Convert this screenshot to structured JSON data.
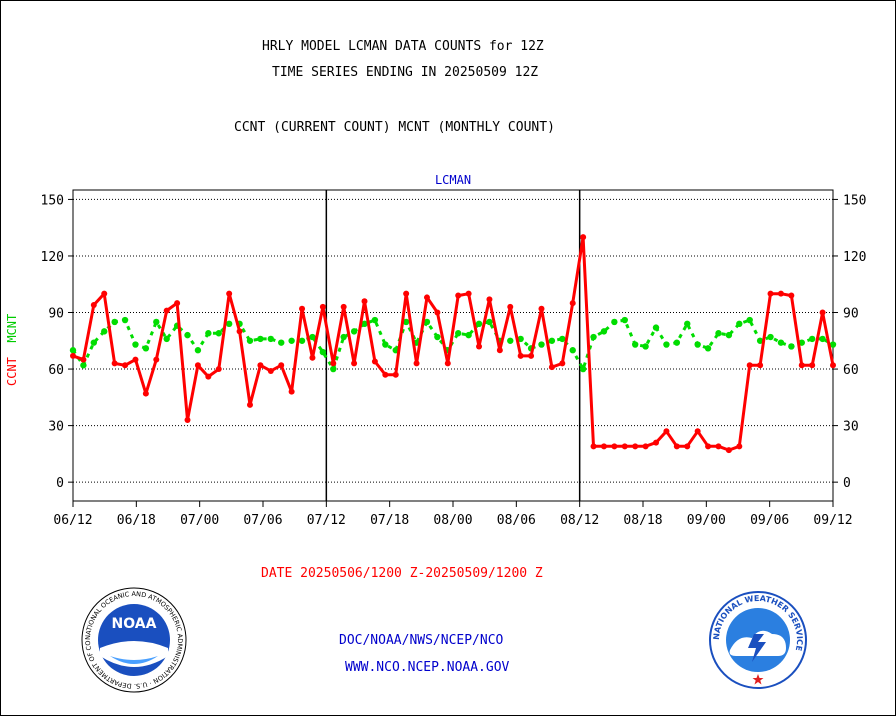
{
  "header": {
    "title_line1": "HRLY MODEL LCMAN DATA COUNTS for 12Z",
    "title_line2": "TIME SERIES ENDING IN 20250509 12Z",
    "subtitle": "CCNT (CURRENT COUNT) MCNT (MONTHLY COUNT)"
  },
  "footer": {
    "date_range": "DATE 20250506/1200 Z-20250509/1200 Z",
    "org_path": "DOC/NOAA/NWS/NCEP/NCO",
    "website": "WWW.NCO.NCEP.NOAA.GOV"
  },
  "logos": {
    "noaa_text": "NOAA",
    "noaa_ring": "NATIONAL OCEANIC AND ATMOSPHERIC ADMINISTRATION · U.S. DEPARTMENT OF COMMERCE",
    "nws_ring": "NATIONAL WEATHER SERVICE"
  },
  "colors": {
    "ccnt": "#ff0000",
    "mcnt": "#00dd00",
    "axis": "#000000",
    "panel_title": "#0000cc"
  },
  "chart_data": {
    "type": "line",
    "panel_title": "LCMAN",
    "ylabel_ccnt": "CCNT",
    "ylabel_mcnt": "MCNT",
    "ylim": [
      -10,
      155
    ],
    "y_ticks": [
      0,
      30,
      60,
      90,
      120,
      150
    ],
    "x_tick_labels": [
      "06/12",
      "06/18",
      "07/00",
      "07/06",
      "07/12",
      "07/18",
      "08/00",
      "08/06",
      "08/12",
      "08/18",
      "09/00",
      "09/06",
      "09/12"
    ],
    "grid": "horizontal dotted",
    "day_separators": [
      "07/12",
      "08/12"
    ],
    "series": [
      {
        "name": "CCNT",
        "color": "#ff0000",
        "values": [
          67,
          65,
          94,
          100,
          63,
          62,
          65,
          47,
          65,
          91,
          95,
          33,
          62,
          56,
          60,
          100,
          80,
          41,
          62,
          59,
          62,
          48,
          92,
          66,
          93,
          63,
          93,
          63,
          96,
          64,
          57,
          57,
          100,
          63,
          98,
          90,
          63,
          99,
          100,
          72,
          97,
          70,
          93,
          67,
          67,
          92,
          61,
          63,
          95,
          130,
          19,
          19,
          19,
          19,
          19,
          19,
          21,
          27,
          19,
          19,
          27,
          19,
          19,
          17,
          19,
          62,
          62,
          100,
          100,
          99,
          62,
          62,
          90,
          62
        ]
      },
      {
        "name": "MCNT",
        "color": "#00dd00",
        "values": [
          70,
          62,
          74,
          80,
          85,
          86,
          73,
          71,
          85,
          76,
          83,
          78,
          70,
          79,
          79,
          84,
          84,
          75,
          76,
          76,
          74,
          75,
          75,
          77,
          69,
          60,
          77,
          80,
          84,
          86,
          73,
          70,
          85,
          74,
          85,
          77,
          70,
          79,
          78,
          84,
          85,
          75,
          75,
          76,
          71,
          73,
          75,
          76,
          70,
          60,
          77,
          80,
          85,
          86,
          73,
          72,
          82,
          73,
          74,
          84,
          73,
          71,
          79,
          78,
          84,
          86,
          75,
          77,
          74,
          72,
          74,
          76,
          76,
          73
        ]
      }
    ]
  }
}
